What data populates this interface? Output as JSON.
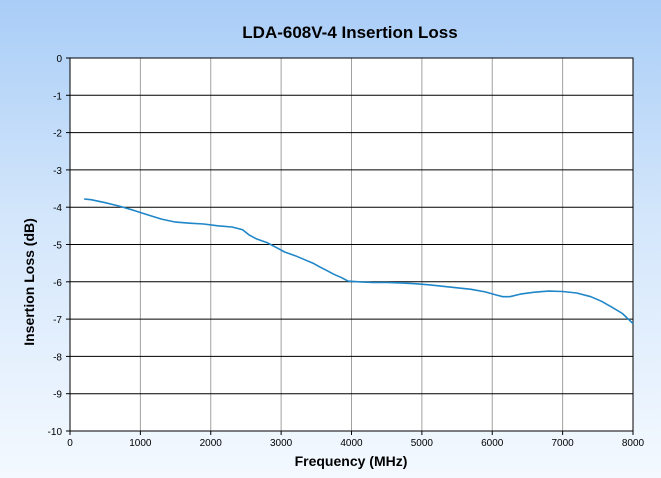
{
  "chart_data": {
    "type": "line",
    "title": "LDA-608V-4 Insertion Loss",
    "xlabel": "Frequency (MHz)",
    "ylabel": "Insertion Loss (dB)",
    "xlim": [
      0,
      8000
    ],
    "ylim": [
      -10,
      0
    ],
    "x_ticks": [
      0,
      1000,
      2000,
      3000,
      4000,
      5000,
      6000,
      7000,
      8000
    ],
    "y_ticks": [
      0,
      -1,
      -2,
      -3,
      -4,
      -5,
      -6,
      -7,
      -8,
      -9,
      -10
    ],
    "x_tick_labels": [
      "0",
      "1000",
      "2000",
      "3000",
      "4000",
      "5000",
      "6000",
      "7000",
      "8000"
    ],
    "y_tick_labels": [
      "0",
      "-1",
      "-2",
      "-3",
      "-4",
      "-5",
      "-6",
      "-7",
      "-8",
      "-9",
      "-10"
    ],
    "grid": true,
    "legend": "none",
    "series": [
      {
        "color": "#1f86c8",
        "x": [
          200,
          300,
          500,
          700,
          900,
          1100,
          1300,
          1500,
          1700,
          1900,
          2100,
          2300,
          2450,
          2550,
          2650,
          2800,
          2950,
          3050,
          3200,
          3350,
          3450,
          3550,
          3650,
          3750,
          3850,
          3950,
          4100,
          4300,
          4500,
          4700,
          4900,
          5100,
          5300,
          5500,
          5700,
          5900,
          6050,
          6150,
          6250,
          6400,
          6600,
          6800,
          7000,
          7200,
          7400,
          7550,
          7700,
          7850,
          8000
        ],
        "y": [
          -3.78,
          -3.8,
          -3.88,
          -3.97,
          -4.08,
          -4.2,
          -4.32,
          -4.4,
          -4.43,
          -4.45,
          -4.5,
          -4.53,
          -4.6,
          -4.75,
          -4.85,
          -4.95,
          -5.1,
          -5.2,
          -5.3,
          -5.42,
          -5.5,
          -5.6,
          -5.7,
          -5.8,
          -5.88,
          -5.98,
          -6.0,
          -6.02,
          -6.02,
          -6.03,
          -6.05,
          -6.08,
          -6.12,
          -6.16,
          -6.2,
          -6.27,
          -6.35,
          -6.4,
          -6.4,
          -6.33,
          -6.28,
          -6.25,
          -6.26,
          -6.3,
          -6.4,
          -6.52,
          -6.68,
          -6.85,
          -7.12
        ]
      }
    ]
  }
}
